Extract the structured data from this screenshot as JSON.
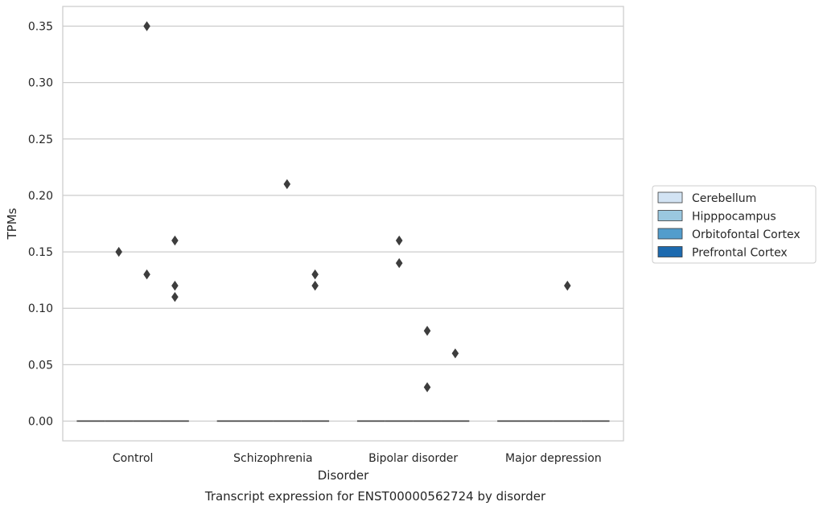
{
  "chart_data": {
    "type": "box",
    "caption": "Transcript expression for ENST00000562724 by disorder",
    "xlabel": "Disorder",
    "ylabel": "TPMs",
    "categories": [
      "Control",
      "Schizophrenia",
      "Bipolar disorder",
      "Major depression"
    ],
    "ylim": [
      -0.0175,
      0.3675
    ],
    "yticks": [
      "0.00",
      "0.05",
      "0.10",
      "0.15",
      "0.20",
      "0.25",
      "0.30",
      "0.35"
    ],
    "grid": true,
    "legend_position": "right",
    "series": [
      {
        "name": "Cerebellum",
        "color": "#d2e3f3"
      },
      {
        "name": "Hipppocampus",
        "color": "#9ac8e0"
      },
      {
        "name": "Orbitofontal Cortex",
        "color": "#529dcc"
      },
      {
        "name": "Prefrontal Cortex",
        "color": "#1c6aaf"
      }
    ],
    "medians": [
      [
        0.0,
        0.0,
        0.0,
        0.0
      ],
      [
        0.0,
        0.0,
        0.0,
        0.0
      ],
      [
        0.0,
        0.0,
        0.0,
        0.0
      ],
      [
        0.0,
        0.0,
        0.0,
        0.0
      ]
    ],
    "outliers": [
      {
        "category": "Control",
        "series": "Hipppocampus",
        "values": [
          0.15
        ]
      },
      {
        "category": "Control",
        "series": "Orbitofontal Cortex",
        "values": [
          0.35,
          0.13
        ]
      },
      {
        "category": "Control",
        "series": "Prefrontal Cortex",
        "values": [
          0.16,
          0.12,
          0.11
        ]
      },
      {
        "category": "Schizophrenia",
        "series": "Orbitofontal Cortex",
        "values": [
          0.21
        ]
      },
      {
        "category": "Schizophrenia",
        "series": "Prefrontal Cortex",
        "values": [
          0.13,
          0.12
        ]
      },
      {
        "category": "Bipolar disorder",
        "series": "Hipppocampus",
        "values": [
          0.16,
          0.14
        ]
      },
      {
        "category": "Bipolar disorder",
        "series": "Orbitofontal Cortex",
        "values": [
          0.08,
          0.03
        ]
      },
      {
        "category": "Bipolar disorder",
        "series": "Prefrontal Cortex",
        "values": [
          0.06
        ]
      },
      {
        "category": "Major depression",
        "series": "Orbitofontal Cortex",
        "values": [
          0.12
        ]
      }
    ]
  }
}
